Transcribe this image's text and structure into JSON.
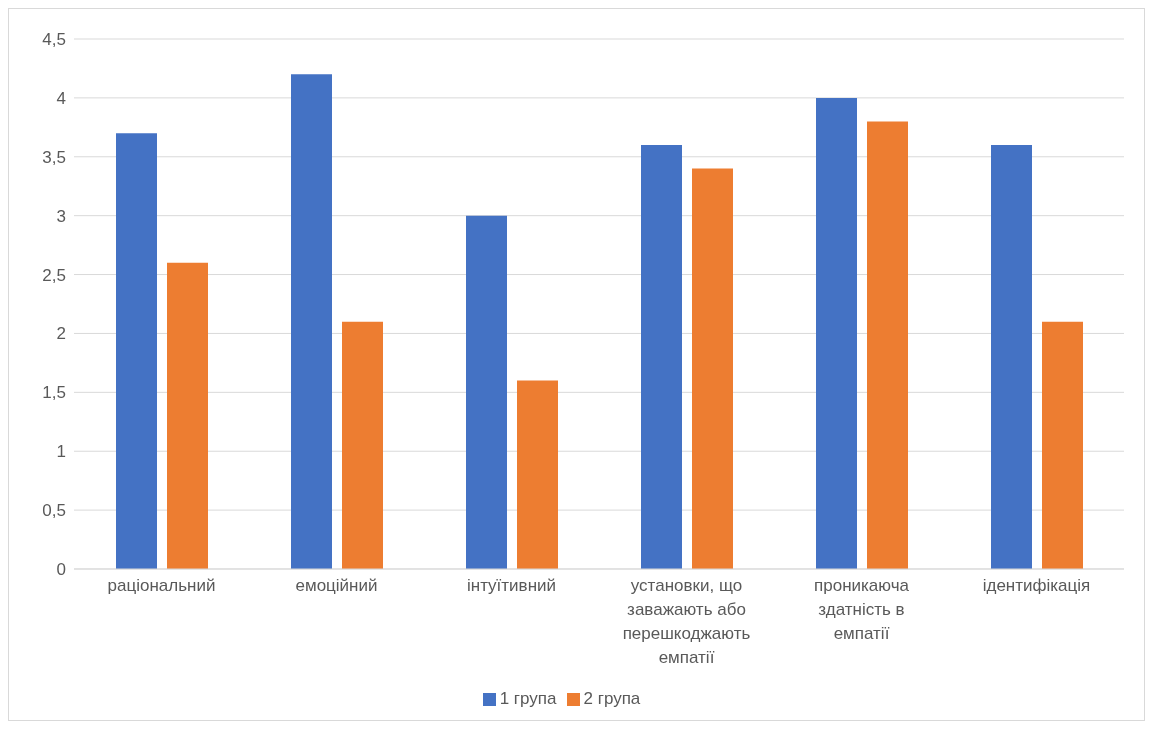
{
  "chart_data": {
    "type": "bar",
    "categories": [
      "раціональний",
      "емоційний",
      "інтуїтивний",
      "установки, що заважають або перешкоджають емпатії",
      "проникаюча здатність в емпатії",
      "ідентифікація"
    ],
    "series": [
      {
        "name": "1 група",
        "color": "#4472c4",
        "values": [
          3.7,
          4.2,
          3.0,
          3.6,
          4.0,
          3.6
        ]
      },
      {
        "name": "2 група",
        "color": "#ed7d31",
        "values": [
          2.6,
          2.1,
          1.6,
          3.4,
          3.8,
          2.1
        ]
      }
    ],
    "ylim": [
      0,
      4.5
    ],
    "yticks": [
      0,
      {
        "value": 0.5,
        "label": "0,5"
      },
      1,
      {
        "value": 1.5,
        "label": "1,5"
      },
      2,
      {
        "value": 2.5,
        "label": "2,5"
      },
      3,
      {
        "value": 3.5,
        "label": "3,5"
      },
      4,
      {
        "value": 4.5,
        "label": "4,5"
      }
    ],
    "grid": "y",
    "legend": "bottom"
  }
}
